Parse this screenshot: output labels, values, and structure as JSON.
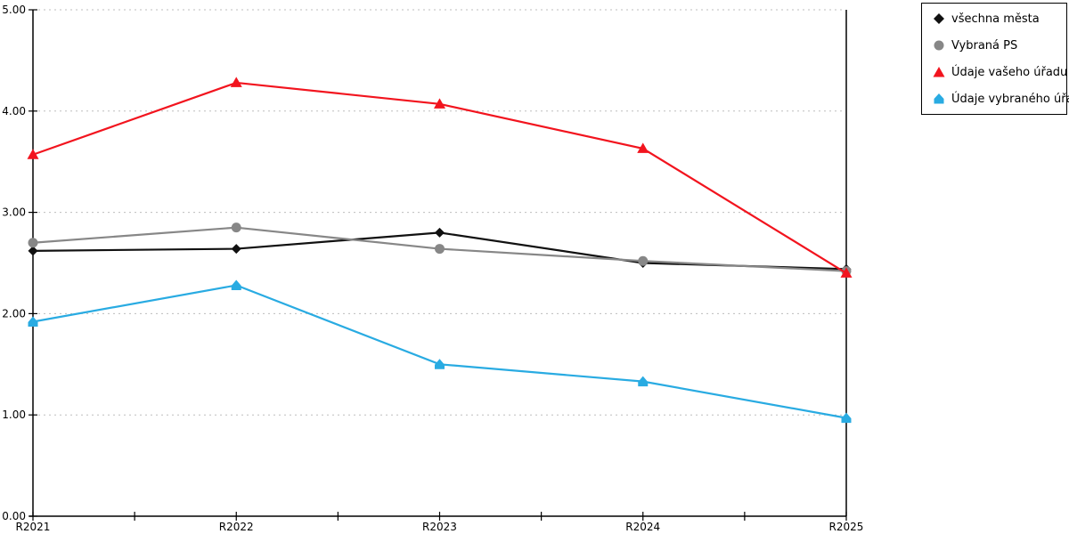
{
  "chart_data": {
    "type": "line",
    "categories": [
      "R2021",
      "R2022",
      "R2023",
      "R2024",
      "R2025"
    ],
    "series": [
      {
        "name": "všechna města",
        "color": "#111111",
        "marker": "diamond",
        "values": [
          2.62,
          2.64,
          2.8,
          2.5,
          2.44
        ]
      },
      {
        "name": "Vybraná PS",
        "color": "#878787",
        "marker": "circle",
        "values": [
          2.7,
          2.85,
          2.64,
          2.52,
          2.42
        ]
      },
      {
        "name": "Údaje vašeho úřadu",
        "color": "#f2141e",
        "marker": "triangle",
        "values": [
          3.57,
          4.28,
          4.07,
          3.63,
          2.4
        ]
      },
      {
        "name": "Údaje vybraného úřadu",
        "color": "#29abe2",
        "marker": "dome",
        "values": [
          1.92,
          2.28,
          1.5,
          1.33,
          0.97
        ]
      }
    ],
    "ylim": [
      0,
      5
    ],
    "y_ticks": [
      {
        "value": 5,
        "label": "5.00"
      },
      {
        "value": 4,
        "label": "4.00"
      },
      {
        "value": 3,
        "label": "3.00"
      },
      {
        "value": 2,
        "label": "2.00"
      },
      {
        "value": 1,
        "label": "1.00"
      },
      {
        "value": 0,
        "label": "0.00"
      }
    ],
    "grid": "horizontal-dotted",
    "legend_position": "top-right",
    "axis_color": "#000000",
    "gridline_color": "#bdbdbd",
    "background": "#ffffff"
  }
}
